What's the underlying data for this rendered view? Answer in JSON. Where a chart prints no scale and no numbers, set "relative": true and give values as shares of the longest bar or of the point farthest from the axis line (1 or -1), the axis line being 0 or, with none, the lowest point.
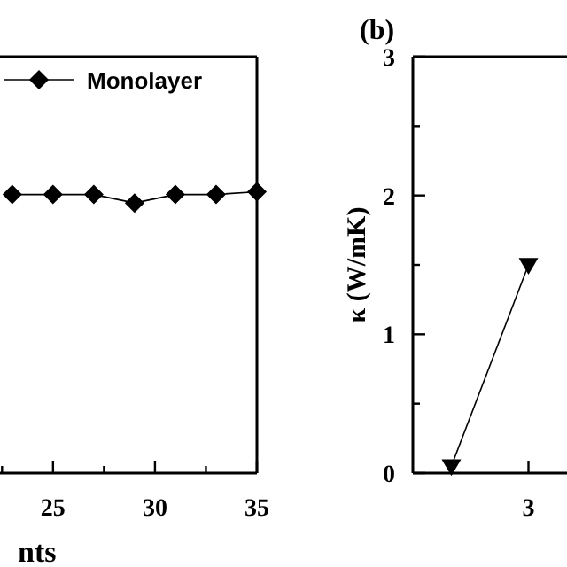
{
  "chart_data": [
    {
      "type": "line",
      "xlabel": "nts",
      "relative": true,
      "xlim": [
        22.4,
        35
      ],
      "xticks": [
        {
          "value": 22.5,
          "label": null
        },
        25,
        {
          "value": 27.5,
          "label": null
        },
        30,
        {
          "value": 32.5,
          "label": null
        },
        35
      ],
      "tick_labels": "x",
      "legend": "top",
      "marker": "diamond",
      "series": [
        {
          "name": "Monolayer",
          "color": "#000000",
          "x": [
            23,
            25,
            27,
            29,
            31,
            33,
            35
          ],
          "values": [
            0.99,
            0.99,
            0.99,
            0.96,
            0.99,
            0.99,
            1.0
          ]
        }
      ]
    },
    {
      "type": "line",
      "title": "(b)",
      "ylabel": "κ (W/mK)",
      "categories": [
        null,
        "3"
      ],
      "ylim": [
        0,
        3
      ],
      "yticks": [
        0,
        {
          "value": 0.5,
          "label": null
        },
        1,
        {
          "value": 1.5,
          "label": null
        },
        2,
        {
          "value": 2.5,
          "label": null
        },
        3
      ],
      "marker": "triangle",
      "series": [
        {
          "color": "#000000",
          "values": [
            0.05,
            1.5
          ]
        }
      ]
    }
  ]
}
